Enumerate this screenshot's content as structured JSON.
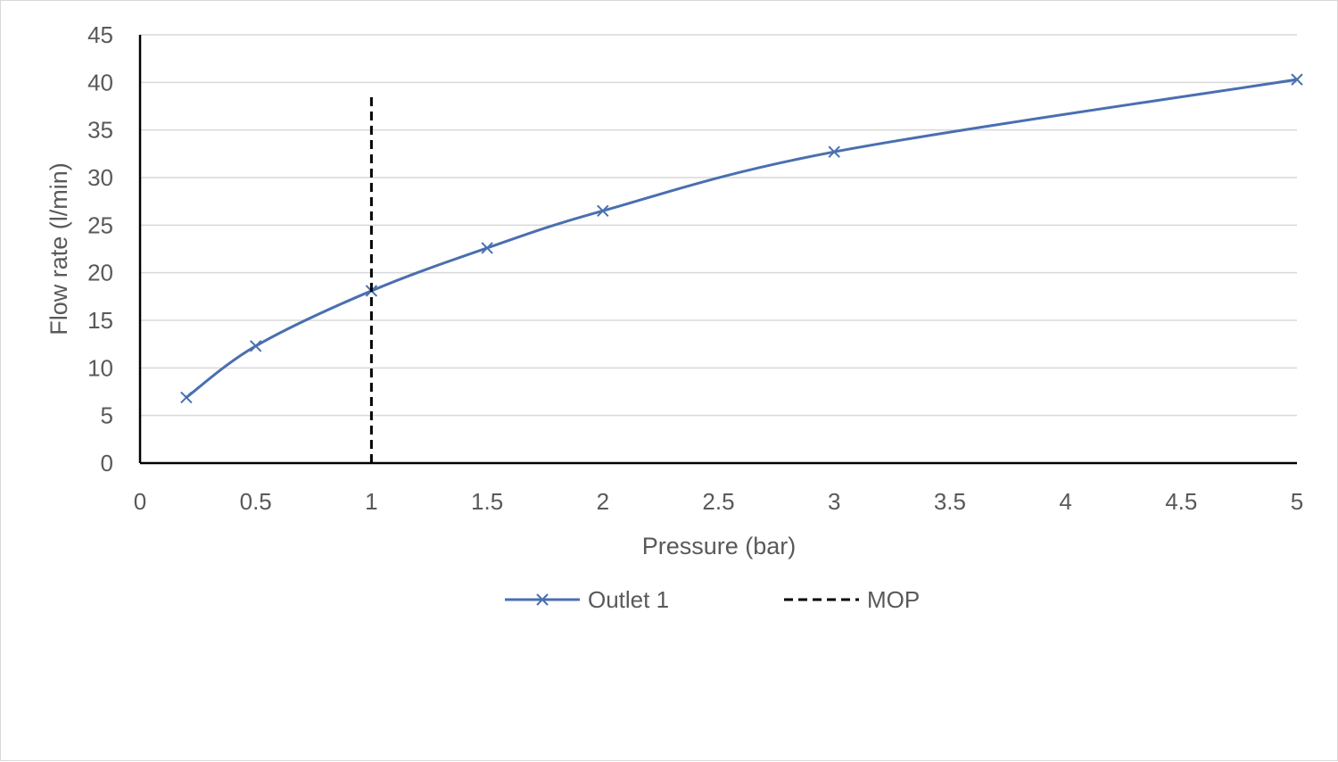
{
  "chart_data": {
    "type": "line",
    "title": "",
    "xlabel": "Pressure (bar)",
    "ylabel": "Flow rate (l/min)",
    "xlim": [
      0,
      5
    ],
    "ylim": [
      0,
      45
    ],
    "x_ticks": [
      "0",
      "0.5",
      "1",
      "1.5",
      "2",
      "2.5",
      "3",
      "3.5",
      "4",
      "4.5",
      "5"
    ],
    "y_ticks": [
      "0",
      "5",
      "10",
      "15",
      "20",
      "25",
      "30",
      "35",
      "40",
      "45"
    ],
    "grid": true,
    "legend_position": "bottom",
    "series": [
      {
        "name": "Outlet 1",
        "color": "#4a6fb0",
        "marker": "x",
        "smooth": true,
        "x": [
          0.2,
          0.5,
          1,
          1.5,
          2,
          3,
          5
        ],
        "y": [
          6.9,
          12.3,
          18.1,
          22.6,
          26.5,
          32.7,
          40.3
        ]
      },
      {
        "name": "MOP",
        "color": "#000000",
        "style": "dashed",
        "x": [
          1,
          1
        ],
        "y": [
          0,
          39
        ]
      }
    ]
  }
}
